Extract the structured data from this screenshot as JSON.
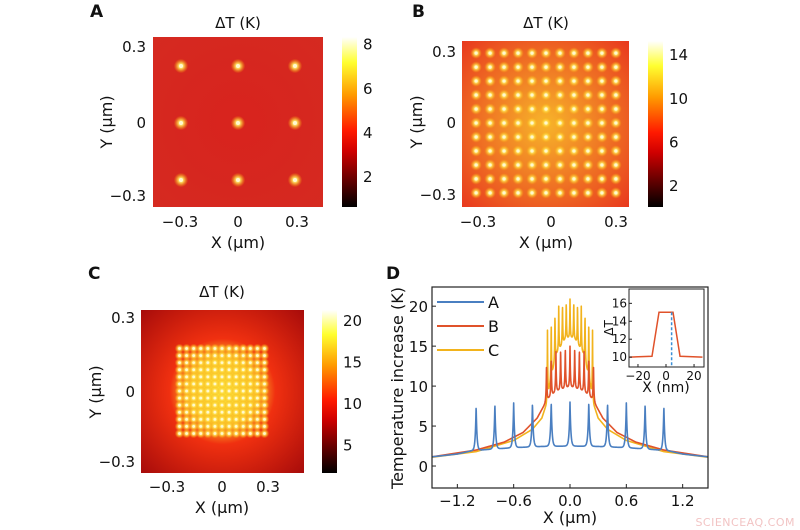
{
  "watermark": "SCIENCEAQ.COM",
  "chart_data": [
    {
      "type": "heatmap",
      "panel": "A",
      "title": "ΔT (K)",
      "xlabel": "X (μm)",
      "ylabel": "Y (μm)",
      "xticks": [
        "−0.3",
        "0",
        "0.3"
      ],
      "yticks": [
        "0.3",
        "0",
        "−0.3"
      ],
      "colorbar": {
        "ticks": [
          "8",
          "6",
          "4",
          "2"
        ],
        "tick_values": [
          8,
          6,
          4,
          2
        ],
        "range": [
          0.6,
          8.3
        ],
        "colormap": "hot"
      },
      "background_value": 3.6,
      "background_color": "#d8231e",
      "dot_grid": {
        "count": 3,
        "extent": 0.3,
        "peak_value": 8
      },
      "gradient": {
        "center": "#d8231e",
        "edge": "#d52a20"
      }
    },
    {
      "type": "heatmap",
      "panel": "B",
      "title": "ΔT (K)",
      "xlabel": "X (μm)",
      "ylabel": "Y (μm)",
      "xticks": [
        "−0.3",
        "0",
        "0.3"
      ],
      "yticks": [
        "0.3",
        "0",
        "−0.3"
      ],
      "colorbar": {
        "ticks": [
          "14",
          "10",
          "6",
          "2"
        ],
        "tick_values": [
          14,
          10,
          6,
          2
        ],
        "range": [
          0,
          15.2
        ],
        "colormap": "hot"
      },
      "dot_grid": {
        "count": 11,
        "extent": 0.3,
        "peak_value": 15
      },
      "gradient": {
        "center": "#f7b52a",
        "edge": "#e8361e"
      }
    },
    {
      "type": "heatmap",
      "panel": "C",
      "title": "ΔT (K)",
      "xlabel": "X (μm)",
      "ylabel": "Y (μm)",
      "xticks": [
        "−0.3",
        "0",
        "0.3"
      ],
      "yticks": [
        "0.3",
        "0",
        "−0.3"
      ],
      "colorbar": {
        "ticks": [
          "20",
          "15",
          "10",
          "5"
        ],
        "tick_values": [
          20,
          15,
          10,
          5
        ],
        "range": [
          1.6,
          21.2
        ],
        "colormap": "hot"
      },
      "dot_grid": {
        "count": 13,
        "extent": 0.24,
        "peak_value": 21
      },
      "gradient": {
        "center": "#f9e43c",
        "mid": "#f03010",
        "edge": "#a40a0a"
      }
    },
    {
      "type": "line",
      "panel": "D",
      "xlabel": "X (μm)",
      "ylabel": "Temperature increase (K)",
      "xlim": [
        -1.47,
        1.47
      ],
      "ylim": [
        -2.75,
        22.4
      ],
      "xticks": [
        -1.2,
        -0.6,
        0.0,
        0.6,
        1.2
      ],
      "xtick_labels": [
        "−1.2",
        "−0.6",
        "0.0",
        "0.6",
        "1.2"
      ],
      "yticks": [
        0,
        5,
        10,
        15,
        20
      ],
      "ytick_labels": [
        "0",
        "5",
        "10",
        "15",
        "20"
      ],
      "legend": "top-left",
      "series": [
        {
          "name": "A",
          "color": "#4a7fc1",
          "baseline": [
            [
              -1.47,
              1.15
            ],
            [
              -1.2,
              1.5
            ],
            [
              -1.05,
              1.9
            ],
            [
              -0.9,
              2.05
            ],
            [
              -0.6,
              2.3
            ],
            [
              -0.3,
              2.45
            ],
            [
              0,
              2.5
            ],
            [
              0.3,
              2.45
            ],
            [
              0.6,
              2.3
            ],
            [
              0.9,
              2.05
            ],
            [
              1.05,
              1.9
            ],
            [
              1.2,
              1.5
            ],
            [
              1.47,
              1.15
            ]
          ],
          "peaks": [
            [
              -1.0,
              7.5
            ],
            [
              -0.8,
              7.8
            ],
            [
              -0.6,
              7.9
            ],
            [
              -0.4,
              7.9
            ],
            [
              -0.2,
              8.0
            ],
            [
              0,
              8.0
            ],
            [
              0.2,
              8.0
            ],
            [
              0.4,
              7.9
            ],
            [
              0.6,
              7.9
            ],
            [
              0.8,
              7.8
            ],
            [
              1.0,
              7.5
            ]
          ]
        },
        {
          "name": "B",
          "color": "#e0522a",
          "baseline": [
            [
              -1.47,
              1.15
            ],
            [
              -1.0,
              2.0
            ],
            [
              -0.7,
              3.0
            ],
            [
              -0.5,
              4.2
            ],
            [
              -0.35,
              6.0
            ],
            [
              -0.28,
              7.5
            ],
            [
              -0.25,
              8.3
            ],
            [
              -0.15,
              9.4
            ],
            [
              0,
              10
            ],
            [
              0.15,
              9.4
            ],
            [
              0.25,
              8.3
            ],
            [
              0.28,
              7.5
            ],
            [
              0.35,
              6.0
            ],
            [
              0.5,
              4.2
            ],
            [
              0.7,
              3.0
            ],
            [
              1.0,
              2.0
            ],
            [
              1.47,
              1.15
            ]
          ],
          "peaks": [
            [
              -0.25,
              12.8
            ],
            [
              -0.2,
              13.6
            ],
            [
              -0.15,
              14.3
            ],
            [
              -0.1,
              14.8
            ],
            [
              -0.05,
              15
            ],
            [
              0,
              15
            ],
            [
              0.05,
              15
            ],
            [
              0.1,
              14.8
            ],
            [
              0.15,
              14.3
            ],
            [
              0.2,
              13.6
            ],
            [
              0.25,
              12.8
            ]
          ]
        },
        {
          "name": "C",
          "color": "#f2b31c",
          "baseline": [
            [
              -1.47,
              1.1
            ],
            [
              -1.0,
              1.8
            ],
            [
              -0.6,
              3.2
            ],
            [
              -0.4,
              4.6
            ],
            [
              -0.3,
              6.0
            ],
            [
              -0.25,
              7.8
            ],
            [
              -0.22,
              10
            ],
            [
              -0.15,
              14
            ],
            [
              -0.05,
              16
            ],
            [
              0,
              16.2
            ],
            [
              0.05,
              16
            ],
            [
              0.15,
              14
            ],
            [
              0.22,
              10
            ],
            [
              0.25,
              7.8
            ],
            [
              0.3,
              6.0
            ],
            [
              0.4,
              4.6
            ],
            [
              0.6,
              3.2
            ],
            [
              1.0,
              1.8
            ],
            [
              1.47,
              1.1
            ]
          ],
          "peaks": [
            [
              -0.24,
              17
            ],
            [
              -0.2,
              18.3
            ],
            [
              -0.16,
              19.3
            ],
            [
              -0.12,
              20
            ],
            [
              -0.08,
              20.5
            ],
            [
              -0.04,
              20.8
            ],
            [
              0,
              20.9
            ],
            [
              0.04,
              20.8
            ],
            [
              0.08,
              20.5
            ],
            [
              0.12,
              20
            ],
            [
              0.16,
              19.3
            ],
            [
              0.2,
              18.3
            ],
            [
              0.24,
              17
            ]
          ]
        }
      ],
      "inset": {
        "type": "line",
        "xlabel": "X (nm)",
        "ylabel": "ΔT",
        "xlim": [
          -26.4,
          27.1
        ],
        "ylim": [
          8.9,
          17.6
        ],
        "xticks": [
          -20,
          0,
          20
        ],
        "xtick_labels": [
          "−20",
          "0",
          "20"
        ],
        "yticks": [
          10,
          12,
          14,
          16
        ],
        "ytick_labels": [
          "10",
          "12",
          "14",
          "16"
        ],
        "color": "#e0522a",
        "points": [
          [
            -26,
            10
          ],
          [
            -10,
            10.1
          ],
          [
            -5,
            15
          ],
          [
            5,
            15
          ],
          [
            10,
            10.1
          ],
          [
            26,
            10
          ]
        ],
        "marker_line": {
          "x": 4,
          "color": "#3b8fd6",
          "style": "dashed"
        }
      }
    }
  ]
}
